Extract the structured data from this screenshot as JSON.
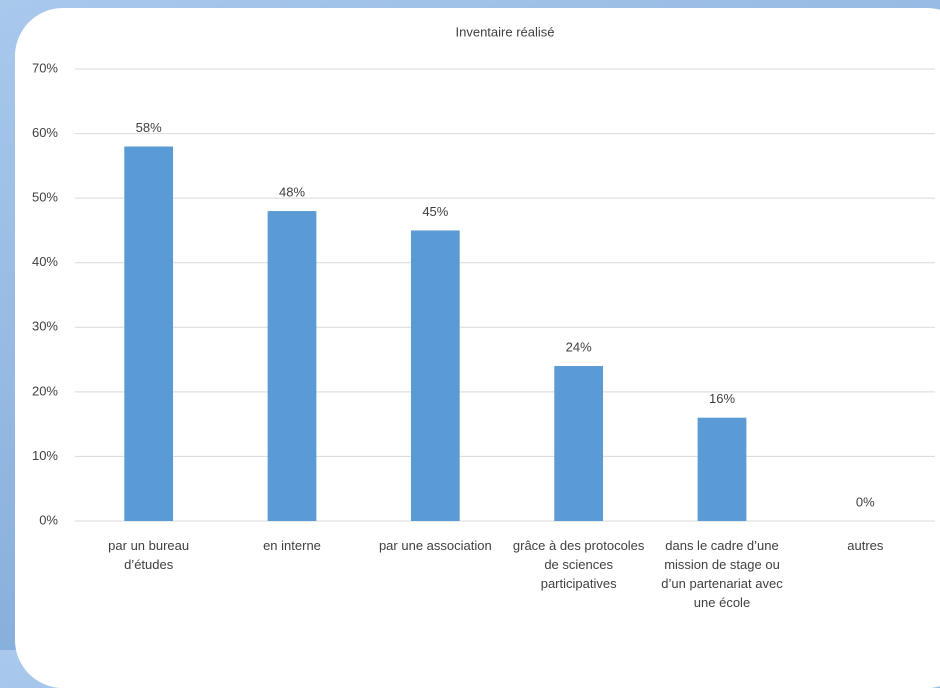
{
  "chart_data": {
    "type": "bar",
    "title": "Inventaire réalisé",
    "categories": [
      "par un bureau d’études",
      "en interne",
      "par une association",
      "grâce à des protocoles de sciences participatives",
      "dans le cadre d’une mission de stage ou d’un partenariat avec une école",
      "autres"
    ],
    "values": [
      58,
      48,
      45,
      24,
      16,
      0
    ],
    "value_labels": [
      "58%",
      "48%",
      "45%",
      "24%",
      "16%",
      "0%"
    ],
    "color": "#5b9bd5",
    "ylim": [
      0,
      70
    ],
    "yticks": [
      {
        "value": 0,
        "label": "0%"
      },
      {
        "value": 10,
        "label": "10%"
      },
      {
        "value": 20,
        "label": "20%"
      },
      {
        "value": 30,
        "label": "30%"
      },
      {
        "value": 40,
        "label": "40%"
      },
      {
        "value": 50,
        "label": "50%"
      },
      {
        "value": 60,
        "label": "60%"
      },
      {
        "value": 70,
        "label": "70%"
      }
    ],
    "grid": true
  }
}
